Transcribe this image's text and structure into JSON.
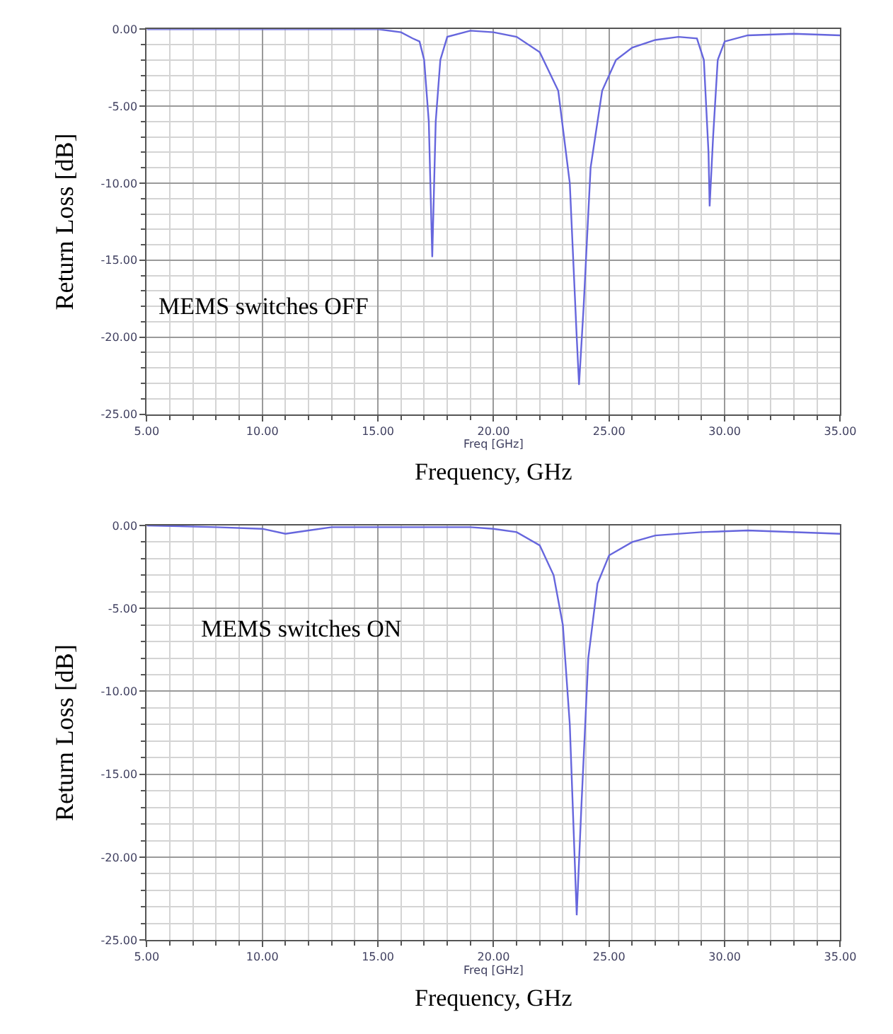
{
  "chart_data": [
    {
      "type": "line",
      "xlabel": "Freq [GHz]",
      "ylabel": "Return Loss [dB]",
      "annotations": [
        "MEMS switches OFF",
        "Frequency, GHz"
      ],
      "grid": true,
      "marker": "none",
      "line_style": "solid",
      "xlim": [
        5,
        35
      ],
      "ylim": [
        -25,
        0
      ],
      "xticks": [
        {
          "value": 5,
          "label": "5.00"
        },
        {
          "value": 10,
          "label": "10.00"
        },
        {
          "value": 15,
          "label": "15.00"
        },
        {
          "value": 20,
          "label": "20.00"
        },
        {
          "value": 25,
          "label": "25.00"
        },
        {
          "value": 30,
          "label": "30.00"
        },
        {
          "value": 35,
          "label": "35.00"
        }
      ],
      "yticks": [
        {
          "value": 0,
          "label": "0.00"
        },
        {
          "value": -5,
          "label": "-5.00"
        },
        {
          "value": -10,
          "label": "-10.00"
        },
        {
          "value": -15,
          "label": "-15.00"
        },
        {
          "value": -20,
          "label": "-20.00"
        },
        {
          "value": -25,
          "label": "-25.00"
        }
      ],
      "series": [
        {
          "color": "#6666dd",
          "x": [
            5,
            10,
            15,
            16,
            16.5,
            16.8,
            17,
            17.2,
            17.35,
            17.5,
            17.7,
            18,
            19,
            20,
            21,
            22,
            22.8,
            23.3,
            23.6,
            23.7,
            23.9,
            24.2,
            24.7,
            25.3,
            26,
            27,
            28,
            28.8,
            29.1,
            29.3,
            29.35,
            29.5,
            29.7,
            30,
            31,
            33,
            35
          ],
          "values": [
            0,
            0,
            0,
            -0.2,
            -0.6,
            -0.8,
            -2,
            -6,
            -14.8,
            -6,
            -2,
            -0.5,
            -0.1,
            -0.2,
            -0.5,
            -1.5,
            -4,
            -10,
            -20,
            -23.1,
            -18,
            -9,
            -4,
            -2,
            -1.2,
            -0.7,
            -0.5,
            -0.6,
            -2,
            -8,
            -11.5,
            -7,
            -2,
            -0.8,
            -0.4,
            -0.3,
            -0.4
          ]
        }
      ]
    },
    {
      "type": "line",
      "xlabel": "Freq [GHz]",
      "ylabel": "Return Loss [dB]",
      "annotations": [
        "MEMS switches ON",
        "Frequency, GHz"
      ],
      "grid": true,
      "marker": "none",
      "line_style": "solid",
      "xlim": [
        5,
        35
      ],
      "ylim": [
        -25,
        0
      ],
      "xticks": [
        {
          "value": 5,
          "label": "5.00"
        },
        {
          "value": 10,
          "label": "10.00"
        },
        {
          "value": 15,
          "label": "15.00"
        },
        {
          "value": 20,
          "label": "20.00"
        },
        {
          "value": 25,
          "label": "25.00"
        },
        {
          "value": 30,
          "label": "30.00"
        },
        {
          "value": 35,
          "label": "35.00"
        }
      ],
      "yticks": [
        {
          "value": 0,
          "label": "0.00"
        },
        {
          "value": -5,
          "label": "-5.00"
        },
        {
          "value": -10,
          "label": "-10.00"
        },
        {
          "value": -15,
          "label": "-15.00"
        },
        {
          "value": -20,
          "label": "-20.00"
        },
        {
          "value": -25,
          "label": "-25.00"
        }
      ],
      "series": [
        {
          "color": "#6666dd",
          "x": [
            5,
            8,
            10,
            11,
            12,
            13,
            15,
            19,
            20,
            21,
            22,
            22.6,
            23,
            23.3,
            23.6,
            23.8,
            24.1,
            24.5,
            25,
            26,
            27,
            29,
            31,
            35
          ],
          "values": [
            0,
            -0.1,
            -0.2,
            -0.5,
            -0.3,
            -0.1,
            -0.1,
            -0.1,
            -0.2,
            -0.4,
            -1.2,
            -3,
            -6,
            -12,
            -23.5,
            -17,
            -8,
            -3.5,
            -1.8,
            -1,
            -0.6,
            -0.4,
            -0.3,
            -0.5
          ]
        }
      ]
    }
  ]
}
